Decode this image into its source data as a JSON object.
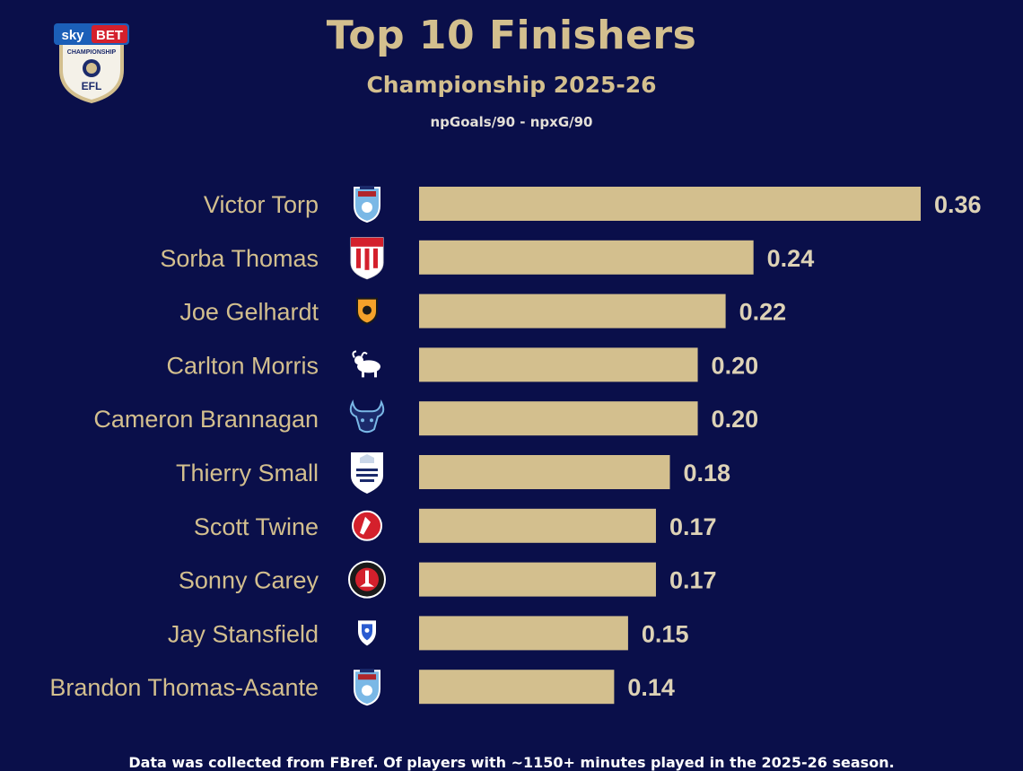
{
  "header": {
    "logo_top": "sky BET",
    "logo_sub": "CHAMPIONSHIP",
    "logo_efl": "EFL",
    "title": "Top 10 Finishers",
    "subtitle": "Championship 2025-26",
    "metric": "npGoals/90 - npxG/90"
  },
  "colors": {
    "background": "#0a0f4a",
    "bar": "#d3bf8e",
    "player_label": "#d3bf8e",
    "value_label": "#ddd2b6"
  },
  "chart_data": {
    "type": "bar",
    "orientation": "horizontal",
    "title": "Top 10 Finishers",
    "subtitle": "Championship 2025-26",
    "xlabel": "npGoals/90 - npxG/90",
    "xlim": [
      0,
      0.38
    ],
    "grid": false,
    "categories": [
      "Victor Torp",
      "Sorba Thomas",
      "Joe Gelhardt",
      "Carlton Morris",
      "Cameron Brannagan",
      "Thierry Small",
      "Scott Twine",
      "Sonny Carey",
      "Jay Stansfield",
      "Brandon Thomas-Asante"
    ],
    "values": [
      0.36,
      0.24,
      0.22,
      0.2,
      0.2,
      0.18,
      0.17,
      0.17,
      0.15,
      0.14
    ],
    "value_labels": [
      "0.36",
      "0.24",
      "0.22",
      "0.20",
      "0.20",
      "0.18",
      "0.17",
      "0.17",
      "0.15",
      "0.14"
    ],
    "club_icons": [
      "coventry-city-crest",
      "stoke-city-crest",
      "hull-city-crest",
      "derby-county-crest",
      "oxford-united-crest",
      "preston-north-end-crest",
      "bristol-city-crest",
      "charlton-athletic-crest",
      "birmingham-city-crest",
      "coventry-city-crest"
    ]
  },
  "footnote": "Data was collected from FBref. Of players with ~1150+ minutes played in the 2025-26 season."
}
